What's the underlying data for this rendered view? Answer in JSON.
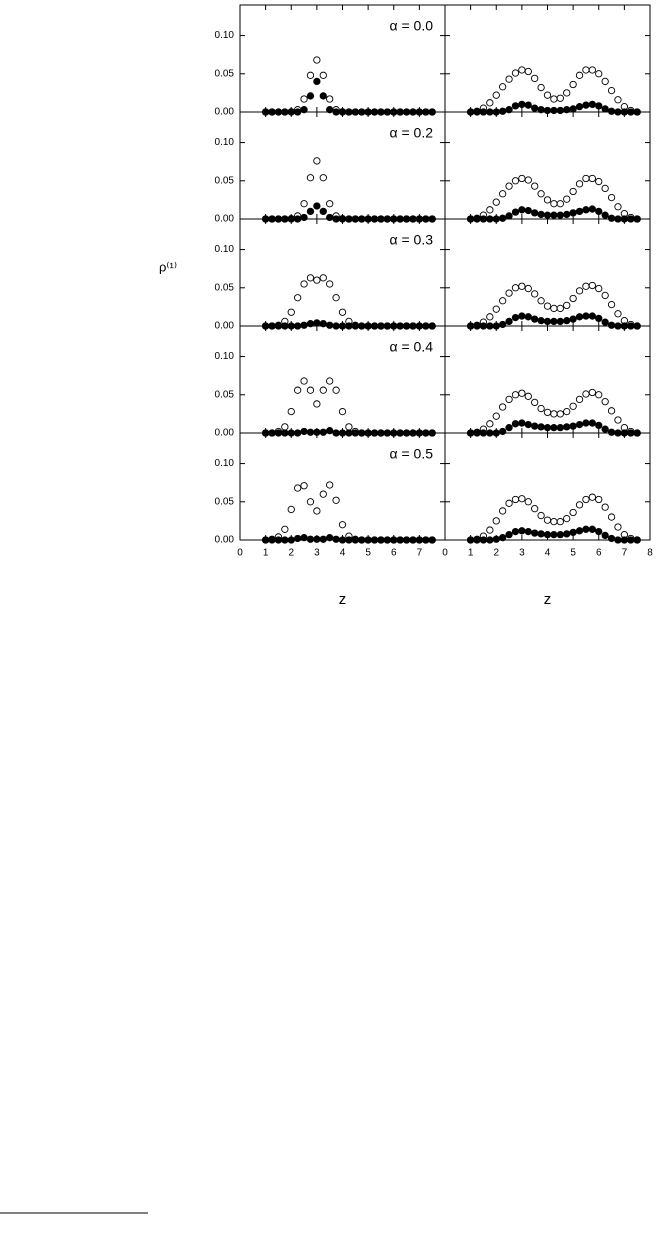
{
  "chart_data": [
    {
      "type": "scatter",
      "label": "α = 0.0",
      "ylabel": "ρ⁽¹⁾",
      "yticklabels": true,
      "xlim": [
        0,
        8
      ],
      "ylim": [
        0,
        0.14
      ],
      "xticks": [
        0,
        1,
        2,
        3,
        4,
        5,
        6,
        7
      ],
      "yticks": [
        {
          "value": 0,
          "label": "0.00"
        },
        {
          "value": 0.05,
          "label": "0.05"
        },
        {
          "value": 0.1,
          "label": "0.10"
        }
      ],
      "x": [
        1,
        1.25,
        1.5,
        1.75,
        2,
        2.25,
        2.5,
        2.75,
        3,
        3.25,
        3.5,
        3.75,
        4,
        4.25,
        4.5,
        4.75,
        5,
        5.25,
        5.5,
        5.75,
        6,
        6.25,
        6.5,
        6.75,
        7,
        7.25,
        7.5
      ],
      "series": [
        {
          "color": "#000000",
          "filled": false,
          "values": [
            0,
            0,
            0,
            0,
            0.0003,
            0.003,
            0.017,
            0.048,
            0.068,
            0.048,
            0.017,
            0.003,
            0.0003,
            0,
            0,
            0,
            0,
            0,
            0,
            0,
            0,
            0,
            0,
            0,
            0,
            0,
            0
          ]
        },
        {
          "color": "#000000",
          "filled": true,
          "values": [
            0,
            0,
            0,
            0,
            0,
            0,
            0.003,
            0.021,
            0.04,
            0.021,
            0.003,
            0,
            0,
            0,
            0,
            0,
            0,
            0,
            0,
            0,
            0,
            0,
            0,
            0,
            0,
            0,
            0
          ]
        }
      ]
    },
    {
      "type": "scatter",
      "xlim": [
        0,
        8
      ],
      "ylim": [
        0,
        0.14
      ],
      "xticks": [
        0,
        1,
        2,
        3,
        4,
        5,
        6,
        7,
        8
      ],
      "yticks": [
        0,
        0.05,
        0.1
      ],
      "x": [
        1,
        1.25,
        1.5,
        1.75,
        2,
        2.25,
        2.5,
        2.75,
        3,
        3.25,
        3.5,
        3.75,
        4,
        4.25,
        4.5,
        4.75,
        5,
        5.25,
        5.5,
        5.75,
        6,
        6.25,
        6.5,
        6.75,
        7,
        7.25,
        7.5
      ],
      "series": [
        {
          "color": "#000000",
          "filled": false,
          "values": [
            0,
            0.001,
            0.005,
            0.012,
            0.022,
            0.033,
            0.043,
            0.051,
            0.055,
            0.053,
            0.044,
            0.032,
            0.022,
            0.017,
            0.018,
            0.025,
            0.036,
            0.048,
            0.055,
            0.055,
            0.05,
            0.04,
            0.028,
            0.016,
            0.007,
            0.002,
            0
          ]
        },
        {
          "color": "#000000",
          "filled": true,
          "values": [
            0,
            0,
            0,
            0,
            0,
            0.001,
            0.003,
            0.008,
            0.01,
            0.009,
            0.005,
            0.003,
            0.002,
            0.002,
            0.002,
            0.003,
            0.004,
            0.007,
            0.009,
            0.01,
            0.008,
            0.004,
            0.001,
            0,
            0,
            0,
            0
          ]
        }
      ]
    },
    {
      "type": "scatter",
      "label": "α = 0.2",
      "yticklabels": true,
      "xlim": [
        0,
        8
      ],
      "ylim": [
        0,
        0.14
      ],
      "xticks": [
        0,
        1,
        2,
        3,
        4,
        5,
        6,
        7
      ],
      "yticks": [
        {
          "value": 0,
          "label": "0.00"
        },
        {
          "value": 0.05,
          "label": "0.05"
        },
        {
          "value": 0.1,
          "label": "0.10"
        }
      ],
      "x": [
        1,
        1.25,
        1.5,
        1.75,
        2,
        2.25,
        2.5,
        2.75,
        3,
        3.25,
        3.5,
        3.75,
        4,
        4.25,
        4.5,
        4.75,
        5,
        5.25,
        5.5,
        5.75,
        6,
        6.25,
        6.5,
        6.75,
        7,
        7.25,
        7.5
      ],
      "series": [
        {
          "color": "#000000",
          "filled": false,
          "values": [
            0,
            0,
            0,
            0,
            0.0004,
            0.004,
            0.02,
            0.054,
            0.076,
            0.054,
            0.02,
            0.004,
            0.0004,
            0,
            0,
            0,
            0,
            0,
            0,
            0,
            0,
            0,
            0,
            0,
            0,
            0,
            0
          ]
        },
        {
          "color": "#000000",
          "filled": true,
          "values": [
            0,
            0,
            0,
            0,
            0,
            0,
            0.002,
            0.01,
            0.017,
            0.01,
            0.002,
            0,
            0,
            0,
            0,
            0,
            0,
            0,
            0,
            0,
            0,
            0,
            0,
            0,
            0,
            0,
            0
          ]
        }
      ]
    },
    {
      "type": "scatter",
      "xlim": [
        0,
        8
      ],
      "ylim": [
        0,
        0.14
      ],
      "xticks": [
        0,
        1,
        2,
        3,
        4,
        5,
        6,
        7,
        8
      ],
      "yticks": [
        0,
        0.05,
        0.1
      ],
      "x": [
        1,
        1.25,
        1.5,
        1.75,
        2,
        2.25,
        2.5,
        2.75,
        3,
        3.25,
        3.5,
        3.75,
        4,
        4.25,
        4.5,
        4.75,
        5,
        5.25,
        5.5,
        5.75,
        6,
        6.25,
        6.5,
        6.75,
        7,
        7.25,
        7.5
      ],
      "series": [
        {
          "color": "#000000",
          "filled": false,
          "values": [
            0,
            0.001,
            0.005,
            0.012,
            0.022,
            0.033,
            0.043,
            0.05,
            0.053,
            0.051,
            0.043,
            0.033,
            0.025,
            0.02,
            0.02,
            0.026,
            0.036,
            0.046,
            0.053,
            0.053,
            0.049,
            0.04,
            0.028,
            0.016,
            0.007,
            0.002,
            0
          ]
        },
        {
          "color": "#000000",
          "filled": true,
          "values": [
            0,
            0,
            0,
            0,
            0,
            0.001,
            0.004,
            0.009,
            0.012,
            0.011,
            0.008,
            0.006,
            0.005,
            0.005,
            0.005,
            0.006,
            0.008,
            0.01,
            0.012,
            0.013,
            0.01,
            0.005,
            0.001,
            0,
            0,
            0,
            0
          ]
        }
      ]
    },
    {
      "type": "scatter",
      "label": "α = 0.3",
      "yticklabels": true,
      "xlim": [
        0,
        8
      ],
      "ylim": [
        0,
        0.14
      ],
      "xticks": [
        0,
        1,
        2,
        3,
        4,
        5,
        6,
        7
      ],
      "yticks": [
        {
          "value": 0,
          "label": "0.00"
        },
        {
          "value": 0.05,
          "label": "0.05"
        },
        {
          "value": 0.1,
          "label": "0.10"
        }
      ],
      "x": [
        1,
        1.25,
        1.5,
        1.75,
        2,
        2.25,
        2.5,
        2.75,
        3,
        3.25,
        3.5,
        3.75,
        4,
        4.25,
        4.5,
        4.75,
        5,
        5.25,
        5.5,
        5.75,
        6,
        6.25,
        6.5,
        6.75,
        7,
        7.25,
        7.5
      ],
      "series": [
        {
          "color": "#000000",
          "filled": false,
          "values": [
            0,
            0,
            0.001,
            0.006,
            0.018,
            0.037,
            0.055,
            0.063,
            0.06,
            0.063,
            0.055,
            0.037,
            0.018,
            0.006,
            0.001,
            0,
            0,
            0,
            0,
            0,
            0,
            0,
            0,
            0,
            0,
            0,
            0
          ]
        },
        {
          "color": "#000000",
          "filled": true,
          "values": [
            0,
            0,
            0,
            0,
            0,
            0,
            0.001,
            0.003,
            0.004,
            0.003,
            0.001,
            0,
            0,
            0,
            0,
            0,
            0,
            0,
            0,
            0,
            0,
            0,
            0,
            0,
            0,
            0,
            0
          ]
        }
      ]
    },
    {
      "type": "scatter",
      "xlim": [
        0,
        8
      ],
      "ylim": [
        0,
        0.14
      ],
      "xticks": [
        0,
        1,
        2,
        3,
        4,
        5,
        6,
        7,
        8
      ],
      "yticks": [
        0,
        0.05,
        0.1
      ],
      "x": [
        1,
        1.25,
        1.5,
        1.75,
        2,
        2.25,
        2.5,
        2.75,
        3,
        3.25,
        3.5,
        3.75,
        4,
        4.25,
        4.5,
        4.75,
        5,
        5.25,
        5.5,
        5.75,
        6,
        6.25,
        6.5,
        6.75,
        7,
        7.25,
        7.5
      ],
      "series": [
        {
          "color": "#000000",
          "filled": false,
          "values": [
            0,
            0.001,
            0.005,
            0.012,
            0.022,
            0.033,
            0.043,
            0.05,
            0.052,
            0.049,
            0.042,
            0.033,
            0.026,
            0.023,
            0.023,
            0.027,
            0.036,
            0.046,
            0.052,
            0.053,
            0.049,
            0.04,
            0.028,
            0.016,
            0.007,
            0.002,
            0
          ]
        },
        {
          "color": "#000000",
          "filled": true,
          "values": [
            0,
            0,
            0,
            0,
            0,
            0.002,
            0.006,
            0.011,
            0.013,
            0.012,
            0.009,
            0.007,
            0.006,
            0.006,
            0.006,
            0.007,
            0.009,
            0.012,
            0.013,
            0.013,
            0.01,
            0.005,
            0.001,
            0,
            0,
            0,
            0
          ]
        }
      ]
    },
    {
      "type": "scatter",
      "label": "α = 0.4",
      "yticklabels": true,
      "xlim": [
        0,
        8
      ],
      "ylim": [
        0,
        0.14
      ],
      "xticks": [
        0,
        1,
        2,
        3,
        4,
        5,
        6,
        7
      ],
      "yticks": [
        {
          "value": 0,
          "label": "0.00"
        },
        {
          "value": 0.05,
          "label": "0.05"
        },
        {
          "value": 0.1,
          "label": "0.10"
        }
      ],
      "x": [
        1,
        1.25,
        1.5,
        1.75,
        2,
        2.25,
        2.5,
        2.75,
        3,
        3.25,
        3.5,
        3.75,
        4,
        4.25,
        4.5,
        4.75,
        5,
        5.25,
        5.5,
        5.75,
        6,
        6.25,
        6.5,
        6.75,
        7,
        7.25,
        7.5
      ],
      "series": [
        {
          "color": "#000000",
          "filled": false,
          "values": [
            0,
            0,
            0.002,
            0.008,
            0.028,
            0.056,
            0.068,
            0.056,
            0.038,
            0.056,
            0.068,
            0.056,
            0.028,
            0.008,
            0.002,
            0,
            0,
            0,
            0,
            0,
            0,
            0,
            0,
            0,
            0,
            0,
            0
          ]
        },
        {
          "color": "#000000",
          "filled": true,
          "values": [
            0,
            0,
            0,
            0,
            0,
            0,
            0.002,
            0.001,
            0.001,
            0.001,
            0.003,
            0,
            0,
            0,
            0,
            0,
            0,
            0,
            0,
            0,
            0,
            0,
            0,
            0,
            0,
            0,
            0
          ]
        }
      ]
    },
    {
      "type": "scatter",
      "xlim": [
        0,
        8
      ],
      "ylim": [
        0,
        0.14
      ],
      "xticks": [
        0,
        1,
        2,
        3,
        4,
        5,
        6,
        7,
        8
      ],
      "yticks": [
        0,
        0.05,
        0.1
      ],
      "x": [
        1,
        1.25,
        1.5,
        1.75,
        2,
        2.25,
        2.5,
        2.75,
        3,
        3.25,
        3.5,
        3.75,
        4,
        4.25,
        4.5,
        4.75,
        5,
        5.25,
        5.5,
        5.75,
        6,
        6.25,
        6.5,
        6.75,
        7,
        7.25,
        7.5
      ],
      "series": [
        {
          "color": "#000000",
          "filled": false,
          "values": [
            0,
            0.001,
            0.005,
            0.012,
            0.022,
            0.034,
            0.044,
            0.05,
            0.052,
            0.048,
            0.04,
            0.032,
            0.027,
            0.025,
            0.025,
            0.028,
            0.035,
            0.044,
            0.051,
            0.053,
            0.05,
            0.041,
            0.029,
            0.017,
            0.007,
            0.002,
            0
          ]
        },
        {
          "color": "#000000",
          "filled": true,
          "values": [
            0,
            0,
            0,
            0,
            0,
            0.002,
            0.007,
            0.012,
            0.013,
            0.011,
            0.009,
            0.008,
            0.007,
            0.007,
            0.007,
            0.008,
            0.009,
            0.011,
            0.013,
            0.013,
            0.01,
            0.005,
            0.001,
            0,
            0,
            0,
            0
          ]
        }
      ]
    },
    {
      "type": "scatter",
      "label": "α = 0.5",
      "xlabel": "z",
      "yticklabels": true,
      "xticklabels": true,
      "xlim": [
        0,
        8
      ],
      "ylim": [
        0,
        0.14
      ],
      "xticks": [
        0,
        1,
        2,
        3,
        4,
        5,
        6,
        7
      ],
      "yticks": [
        {
          "value": 0,
          "label": "0.00"
        },
        {
          "value": 0.05,
          "label": "0.05"
        },
        {
          "value": 0.1,
          "label": "0.10"
        }
      ],
      "x": [
        1,
        1.25,
        1.5,
        1.75,
        2,
        2.25,
        2.5,
        2.75,
        3,
        3.25,
        3.5,
        3.75,
        4,
        4.25,
        4.5,
        4.75,
        5,
        5.25,
        5.5,
        5.75,
        6,
        6.25,
        6.5,
        6.75,
        7,
        7.25,
        7.5
      ],
      "series": [
        {
          "color": "#000000",
          "filled": false,
          "values": [
            0,
            0.001,
            0.004,
            0.014,
            0.04,
            0.068,
            0.071,
            0.05,
            0.038,
            0.06,
            0.072,
            0.052,
            0.02,
            0.005,
            0.001,
            0,
            0,
            0,
            0,
            0,
            0,
            0,
            0,
            0,
            0,
            0,
            0
          ]
        },
        {
          "color": "#000000",
          "filled": true,
          "values": [
            0,
            0,
            0,
            0,
            0,
            0.002,
            0.003,
            0.001,
            0.001,
            0.001,
            0.003,
            0.001,
            0,
            0,
            0,
            0,
            0,
            0,
            0,
            0,
            0,
            0,
            0,
            0,
            0,
            0,
            0
          ]
        }
      ]
    },
    {
      "type": "scatter",
      "xlabel": "z",
      "xticklabels": true,
      "xlim": [
        0,
        8
      ],
      "ylim": [
        0,
        0.14
      ],
      "xticks": [
        0,
        1,
        2,
        3,
        4,
        5,
        6,
        7,
        8
      ],
      "yticks": [
        0,
        0.05,
        0.1
      ],
      "x": [
        1,
        1.25,
        1.5,
        1.75,
        2,
        2.25,
        2.5,
        2.75,
        3,
        3.25,
        3.5,
        3.75,
        4,
        4.25,
        4.5,
        4.75,
        5,
        5.25,
        5.5,
        5.75,
        6,
        6.25,
        6.5,
        6.75,
        7,
        7.25,
        7.5
      ],
      "series": [
        {
          "color": "#000000",
          "filled": false,
          "values": [
            0,
            0.001,
            0.005,
            0.013,
            0.025,
            0.038,
            0.048,
            0.053,
            0.054,
            0.05,
            0.041,
            0.032,
            0.026,
            0.024,
            0.024,
            0.028,
            0.036,
            0.046,
            0.053,
            0.056,
            0.053,
            0.043,
            0.03,
            0.017,
            0.007,
            0.002,
            0
          ]
        },
        {
          "color": "#000000",
          "filled": true,
          "values": [
            0,
            0,
            0,
            0,
            0.001,
            0.003,
            0.007,
            0.011,
            0.012,
            0.011,
            0.009,
            0.008,
            0.007,
            0.007,
            0.007,
            0.008,
            0.01,
            0.012,
            0.014,
            0.014,
            0.011,
            0.006,
            0.002,
            0,
            0,
            0,
            0
          ]
        }
      ]
    }
  ]
}
